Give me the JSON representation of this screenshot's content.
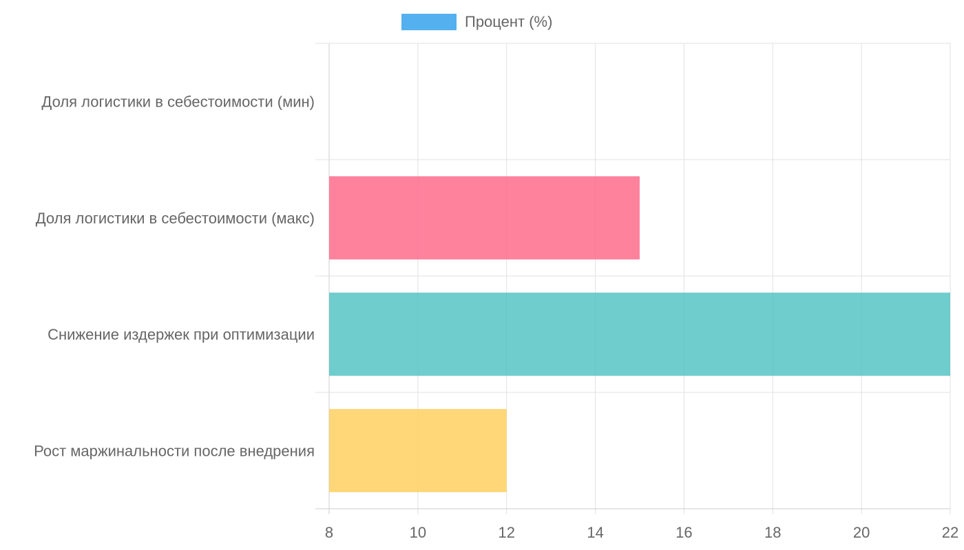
{
  "chart_data": {
    "type": "bar",
    "orientation": "horizontal",
    "categories": [
      "Доля логистики в себестоимости (мин)",
      "Доля логистики в себестоимости (макс)",
      "Снижение издержек при оптимизации",
      "Рост маржинальности после внедрения"
    ],
    "series": [
      {
        "name": "Процент (%)",
        "values": [
          8,
          15,
          22,
          12
        ]
      }
    ],
    "bar_colors": [
      "#36A2EB",
      "#FF6384",
      "#4BC0C0",
      "#FFCD56"
    ],
    "legend_color": "#36A2EB",
    "xlim": [
      8,
      22
    ],
    "x_ticks": [
      "8",
      "10",
      "12",
      "14",
      "16",
      "18",
      "20",
      "22"
    ],
    "grid": true,
    "legend_position": "top"
  }
}
